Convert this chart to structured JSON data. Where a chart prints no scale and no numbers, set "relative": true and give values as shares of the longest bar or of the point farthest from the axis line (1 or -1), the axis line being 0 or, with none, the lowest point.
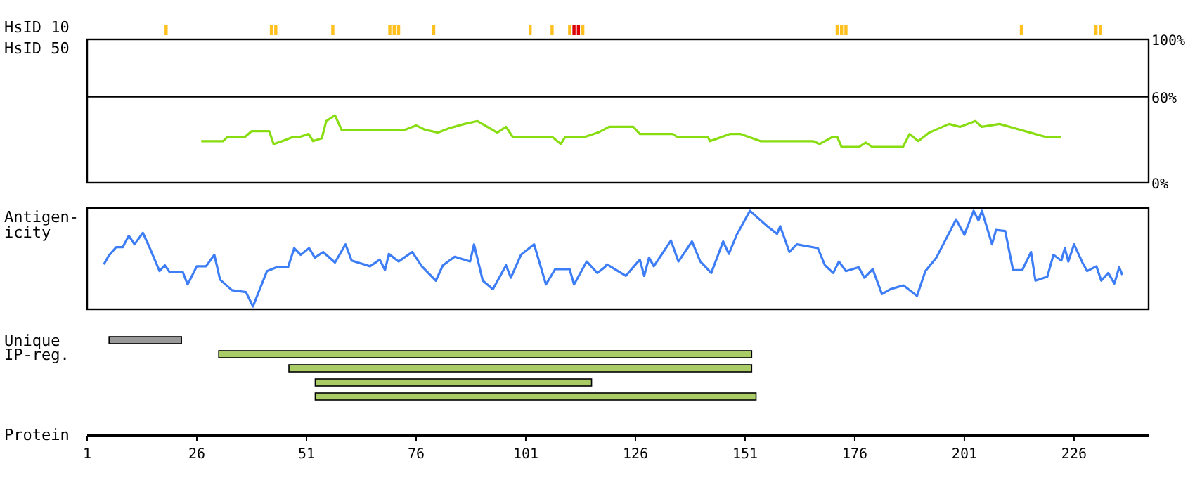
{
  "chart_data": [
    {
      "type": "bar",
      "relative": true,
      "ylabel": "HsID 10",
      "tick_labels": false,
      "xlim": [
        1,
        243
      ],
      "x": [
        19,
        43,
        44,
        57,
        70,
        71,
        72,
        80,
        102,
        107,
        111,
        112,
        113,
        114,
        172,
        173,
        174,
        214,
        231,
        232
      ],
      "values": [
        1,
        1,
        1,
        1,
        1,
        1,
        1,
        1,
        1,
        1,
        1,
        1,
        1,
        1,
        1,
        1,
        1,
        1,
        1,
        1
      ],
      "colors": [
        "#ffc020",
        "#ffc020",
        "#ffc020",
        "#ffc020",
        "#ffc020",
        "#ffc020",
        "#ffc020",
        "#ffc020",
        "#ffc020",
        "#ffc020",
        "#ffc020",
        "#dd0000",
        "#dd0000",
        "#ffc020",
        "#ffc020",
        "#ffc020",
        "#ffc020",
        "#ffc020",
        "#ffc020",
        "#ffc020"
      ]
    },
    {
      "type": "line",
      "ylabel": "HsID 50",
      "xlim": [
        1,
        243
      ],
      "ylim": [
        0,
        100
      ],
      "yticks": [
        {
          "value": 100,
          "label": "100%"
        },
        {
          "value": 60,
          "label": "60%"
        },
        {
          "value": 0,
          "label": "0%"
        }
      ],
      "tick_labels": "y",
      "ref_lines": [
        {
          "axis": "y",
          "value": 60
        }
      ],
      "series": [
        {
          "color": "#88dd11",
          "x": [
            27,
            32,
            33,
            37,
            38.5,
            42.5,
            43.5,
            45.5,
            48,
            49.5,
            51.5,
            52.5,
            54.5,
            55.5,
            57.5,
            59,
            73.5,
            76,
            78,
            81,
            83.5,
            87,
            90,
            94.5,
            96.5,
            98,
            107,
            109,
            110,
            114.5,
            117.5,
            120,
            125.5,
            127,
            134.5,
            135.5,
            142.5,
            143,
            147.5,
            150,
            154.5,
            166.5,
            168,
            171,
            172,
            173,
            177,
            178.5,
            180,
            187,
            188.5,
            190.5,
            193,
            197.5,
            200,
            203.5,
            205,
            209,
            212.5,
            216,
            219.5,
            223
          ],
          "values": [
            29,
            29,
            32,
            32,
            36,
            36,
            27,
            29,
            32,
            32,
            34,
            29,
            31,
            43,
            47,
            37,
            37,
            40,
            37,
            35,
            38,
            41,
            43,
            35,
            39,
            32,
            32,
            27,
            32,
            32,
            35,
            39,
            39,
            34,
            34,
            32,
            32,
            29,
            34,
            34,
            29,
            29,
            27,
            32,
            32,
            25,
            25,
            28,
            25,
            25,
            34,
            29,
            35,
            41,
            39,
            43,
            39,
            41,
            38,
            35,
            32,
            32
          ]
        }
      ]
    },
    {
      "type": "line",
      "relative": true,
      "ylabel": "Antigen-\nicity",
      "xlim": [
        1,
        243
      ],
      "tick_labels": false,
      "series": [
        {
          "color": "#3d7df5",
          "x": [
            4.8,
            5.9,
            7.6,
            9.1,
            10.5,
            11.8,
            13.7,
            15.3,
            17.5,
            18.7,
            19.8,
            22.8,
            23.9,
            26,
            28.1,
            30,
            31.3,
            34,
            37.2,
            38.8,
            42,
            44.2,
            46.8,
            48.2,
            49.7,
            51.6,
            52.9,
            54.8,
            57.5,
            59.9,
            61.3,
            65.5,
            67.7,
            68.9,
            69.8,
            72,
            75.1,
            77.3,
            80.5,
            82.1,
            84.8,
            88.3,
            89.2,
            91.2,
            93.5,
            96.5,
            97.6,
            99.9,
            102.9,
            105.6,
            107.7,
            111,
            112,
            114.9,
            117.3,
            119,
            119.5,
            123.8,
            127,
            128,
            129.1,
            130.2,
            134.1,
            135.8,
            138.9,
            140.8,
            143.3,
            146,
            147.3,
            149.1,
            152.1,
            155.8,
            158.3,
            159,
            161.1,
            162.8,
            167.6,
            169.2,
            171.1,
            172.4,
            174,
            176.9,
            178.2,
            180.1,
            182.2,
            184.1,
            187.1,
            190.2,
            192.1,
            194.6,
            199.1,
            201,
            203.1,
            204.2,
            205,
            207.3,
            208.2,
            210.3,
            212.1,
            214.2,
            216.2,
            217.2,
            219.9,
            221.3,
            223.1,
            223.9,
            224.7,
            226,
            227.9,
            229,
            231.1,
            232.2,
            233.8,
            235.2,
            236.3,
            237
          ],
          "values": [
            0.44,
            0.53,
            0.62,
            0.62,
            0.74,
            0.65,
            0.77,
            0.61,
            0.37,
            0.43,
            0.36,
            0.36,
            0.23,
            0.42,
            0.42,
            0.54,
            0.28,
            0.17,
            0.15,
            0,
            0.37,
            0.41,
            0.41,
            0.61,
            0.54,
            0.61,
            0.51,
            0.57,
            0.46,
            0.65,
            0.48,
            0.42,
            0.49,
            0.38,
            0.55,
            0.47,
            0.57,
            0.42,
            0.27,
            0.43,
            0.52,
            0.47,
            0.65,
            0.27,
            0.18,
            0.43,
            0.3,
            0.54,
            0.65,
            0.23,
            0.39,
            0.39,
            0.23,
            0.47,
            0.35,
            0.41,
            0.44,
            0.32,
            0.49,
            0.32,
            0.51,
            0.42,
            0.69,
            0.47,
            0.68,
            0.47,
            0.35,
            0.68,
            0.55,
            0.75,
            1,
            0.85,
            0.76,
            0.84,
            0.57,
            0.65,
            0.61,
            0.43,
            0.35,
            0.47,
            0.37,
            0.41,
            0.3,
            0.39,
            0.13,
            0.18,
            0.22,
            0.11,
            0.37,
            0.51,
            0.91,
            0.75,
            1,
            0.9,
            1,
            0.65,
            0.8,
            0.79,
            0.38,
            0.38,
            0.57,
            0.27,
            0.31,
            0.54,
            0.48,
            0.61,
            0.47,
            0.65,
            0.46,
            0.37,
            0.42,
            0.27,
            0.35,
            0.24,
            0.41,
            0.33
          ]
        }
      ]
    },
    {
      "type": "bar",
      "orientation": "horizontal",
      "categories": [
        "Unique",
        "IP-reg.",
        null,
        null,
        null
      ],
      "xlabel": "Protein",
      "xlim": [
        1,
        243
      ],
      "xticks": [
        1,
        26,
        51,
        76,
        101,
        126,
        151,
        176,
        201,
        226
      ],
      "base": [
        6,
        31,
        47,
        53,
        53
      ],
      "values": [
        16.5,
        121.5,
        105.5,
        63,
        100.5
      ],
      "colors": [
        "#999999",
        "#aacc66",
        "#aacc66",
        "#aacc66",
        "#aacc66"
      ]
    }
  ]
}
